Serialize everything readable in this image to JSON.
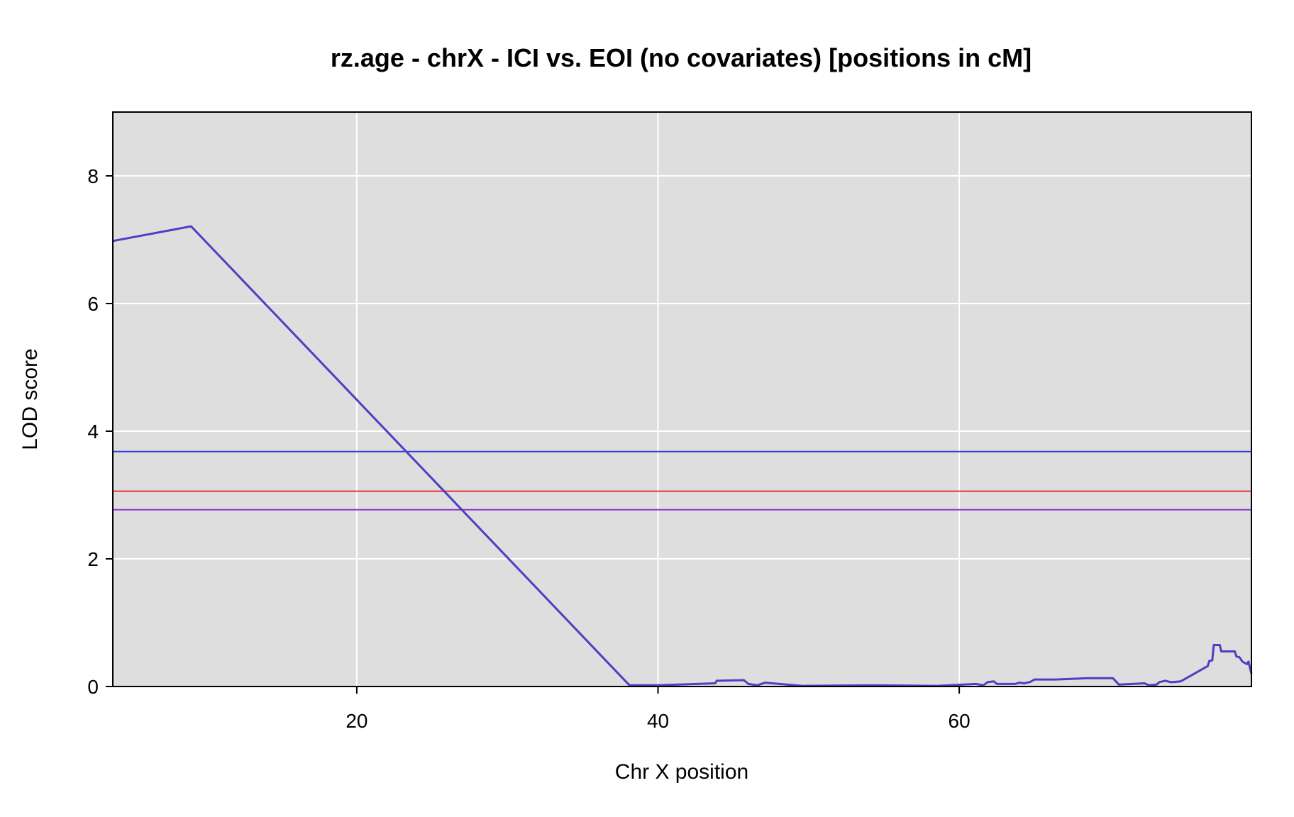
{
  "chart_data": {
    "type": "line",
    "title": "rz.age - chrX - ICI vs. EOI (no covariates) [positions in cM]",
    "xlabel": "Chr X position",
    "ylabel": "LOD score",
    "xlim": [
      3.8,
      79.4
    ],
    "ylim": [
      0,
      9
    ],
    "xticks": [
      20,
      40,
      60
    ],
    "yticks": [
      0,
      2,
      4,
      6,
      8
    ],
    "grid": true,
    "background": "#DEDEDF",
    "grid_color": "#FFFFFF",
    "series": [
      {
        "color": "#4D3FC2",
        "x": [
          3.8,
          9.0,
          38.1,
          40.0,
          43.8,
          43.9,
          45.7,
          46.0,
          46.6,
          47.1,
          49.6,
          54.3,
          58.5,
          61.1,
          61.6,
          61.9,
          62.3,
          62.5,
          62.8,
          63.7,
          64.0,
          64.3,
          64.7,
          65.0,
          66.4,
          68.5,
          70.2,
          70.6,
          72.3,
          72.6,
          73.1,
          73.3,
          73.7,
          74.0,
          74.2,
          74.7,
          76.5,
          76.6,
          76.8,
          76.9,
          77.3,
          77.4,
          78.3,
          78.4,
          78.6,
          78.8,
          79.1,
          79.2,
          79.4
        ],
        "y": [
          6.98,
          7.21,
          0.02,
          0.02,
          0.05,
          0.09,
          0.1,
          0.04,
          0.02,
          0.06,
          0.01,
          0.02,
          0.01,
          0.04,
          0.02,
          0.07,
          0.08,
          0.04,
          0.04,
          0.04,
          0.06,
          0.05,
          0.07,
          0.11,
          0.11,
          0.13,
          0.13,
          0.03,
          0.05,
          0.02,
          0.03,
          0.07,
          0.09,
          0.07,
          0.07,
          0.08,
          0.32,
          0.4,
          0.41,
          0.65,
          0.65,
          0.55,
          0.55,
          0.47,
          0.46,
          0.39,
          0.35,
          0.39,
          0.2
        ]
      }
    ],
    "hlines": [
      {
        "y": 3.68,
        "color": "#3A3ADB"
      },
      {
        "y": 3.06,
        "color": "#E8343C"
      },
      {
        "y": 2.77,
        "color": "#9235CE"
      }
    ]
  }
}
